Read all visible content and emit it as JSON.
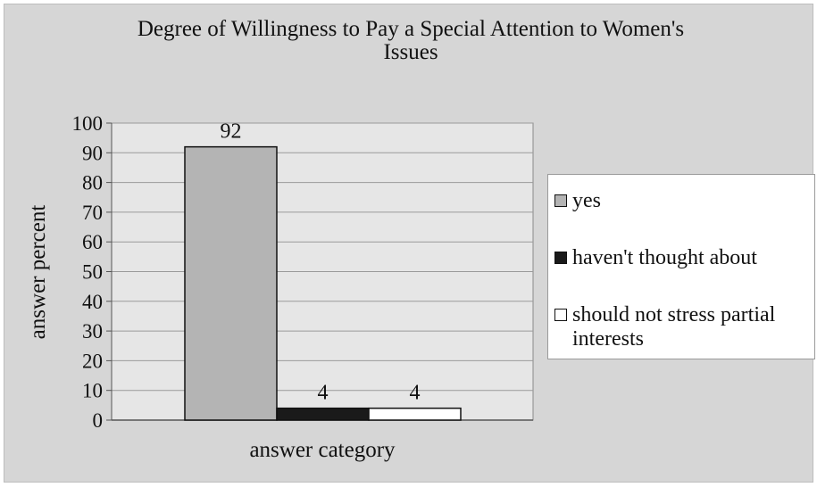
{
  "chart_data": {
    "type": "bar",
    "title": "Degree of Willingness to Pay a Special Attention to Women's\nIssues",
    "xlabel": "answer category",
    "ylabel": "answer percent",
    "ylim": [
      0,
      100
    ],
    "yticks": [
      0,
      10,
      20,
      30,
      40,
      50,
      60,
      70,
      80,
      90,
      100
    ],
    "categories": [
      ""
    ],
    "series": [
      {
        "name": "yes",
        "values": [
          92
        ],
        "color": "#b4b4b4",
        "data_label": "92"
      },
      {
        "name": "haven't thought about",
        "values": [
          4
        ],
        "color": "#1a1a1a",
        "data_label": "4"
      },
      {
        "name": "should not stress partial interests",
        "values": [
          4
        ],
        "color": "#ffffff",
        "data_label": "4"
      }
    ],
    "grid": true,
    "legend_position": "right",
    "plot_background": "#e6e6e6",
    "chart_background": "#d6d6d6"
  }
}
